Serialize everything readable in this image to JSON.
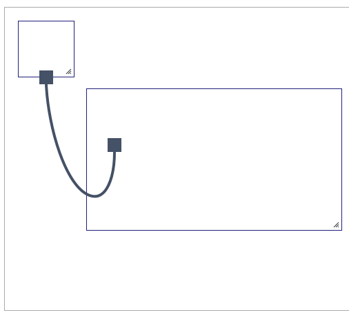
{
  "canvas": {
    "frame_color": "#aaaaaa",
    "panel_border_color": "#1f1f7a",
    "port_color": "#445166",
    "wire_color": "#445166"
  },
  "nodes": [
    {
      "name": "small-node",
      "resizable": true
    },
    {
      "name": "large-node",
      "resizable": true
    }
  ],
  "connections": [
    {
      "from": "small-node",
      "to": "large-node"
    }
  ]
}
